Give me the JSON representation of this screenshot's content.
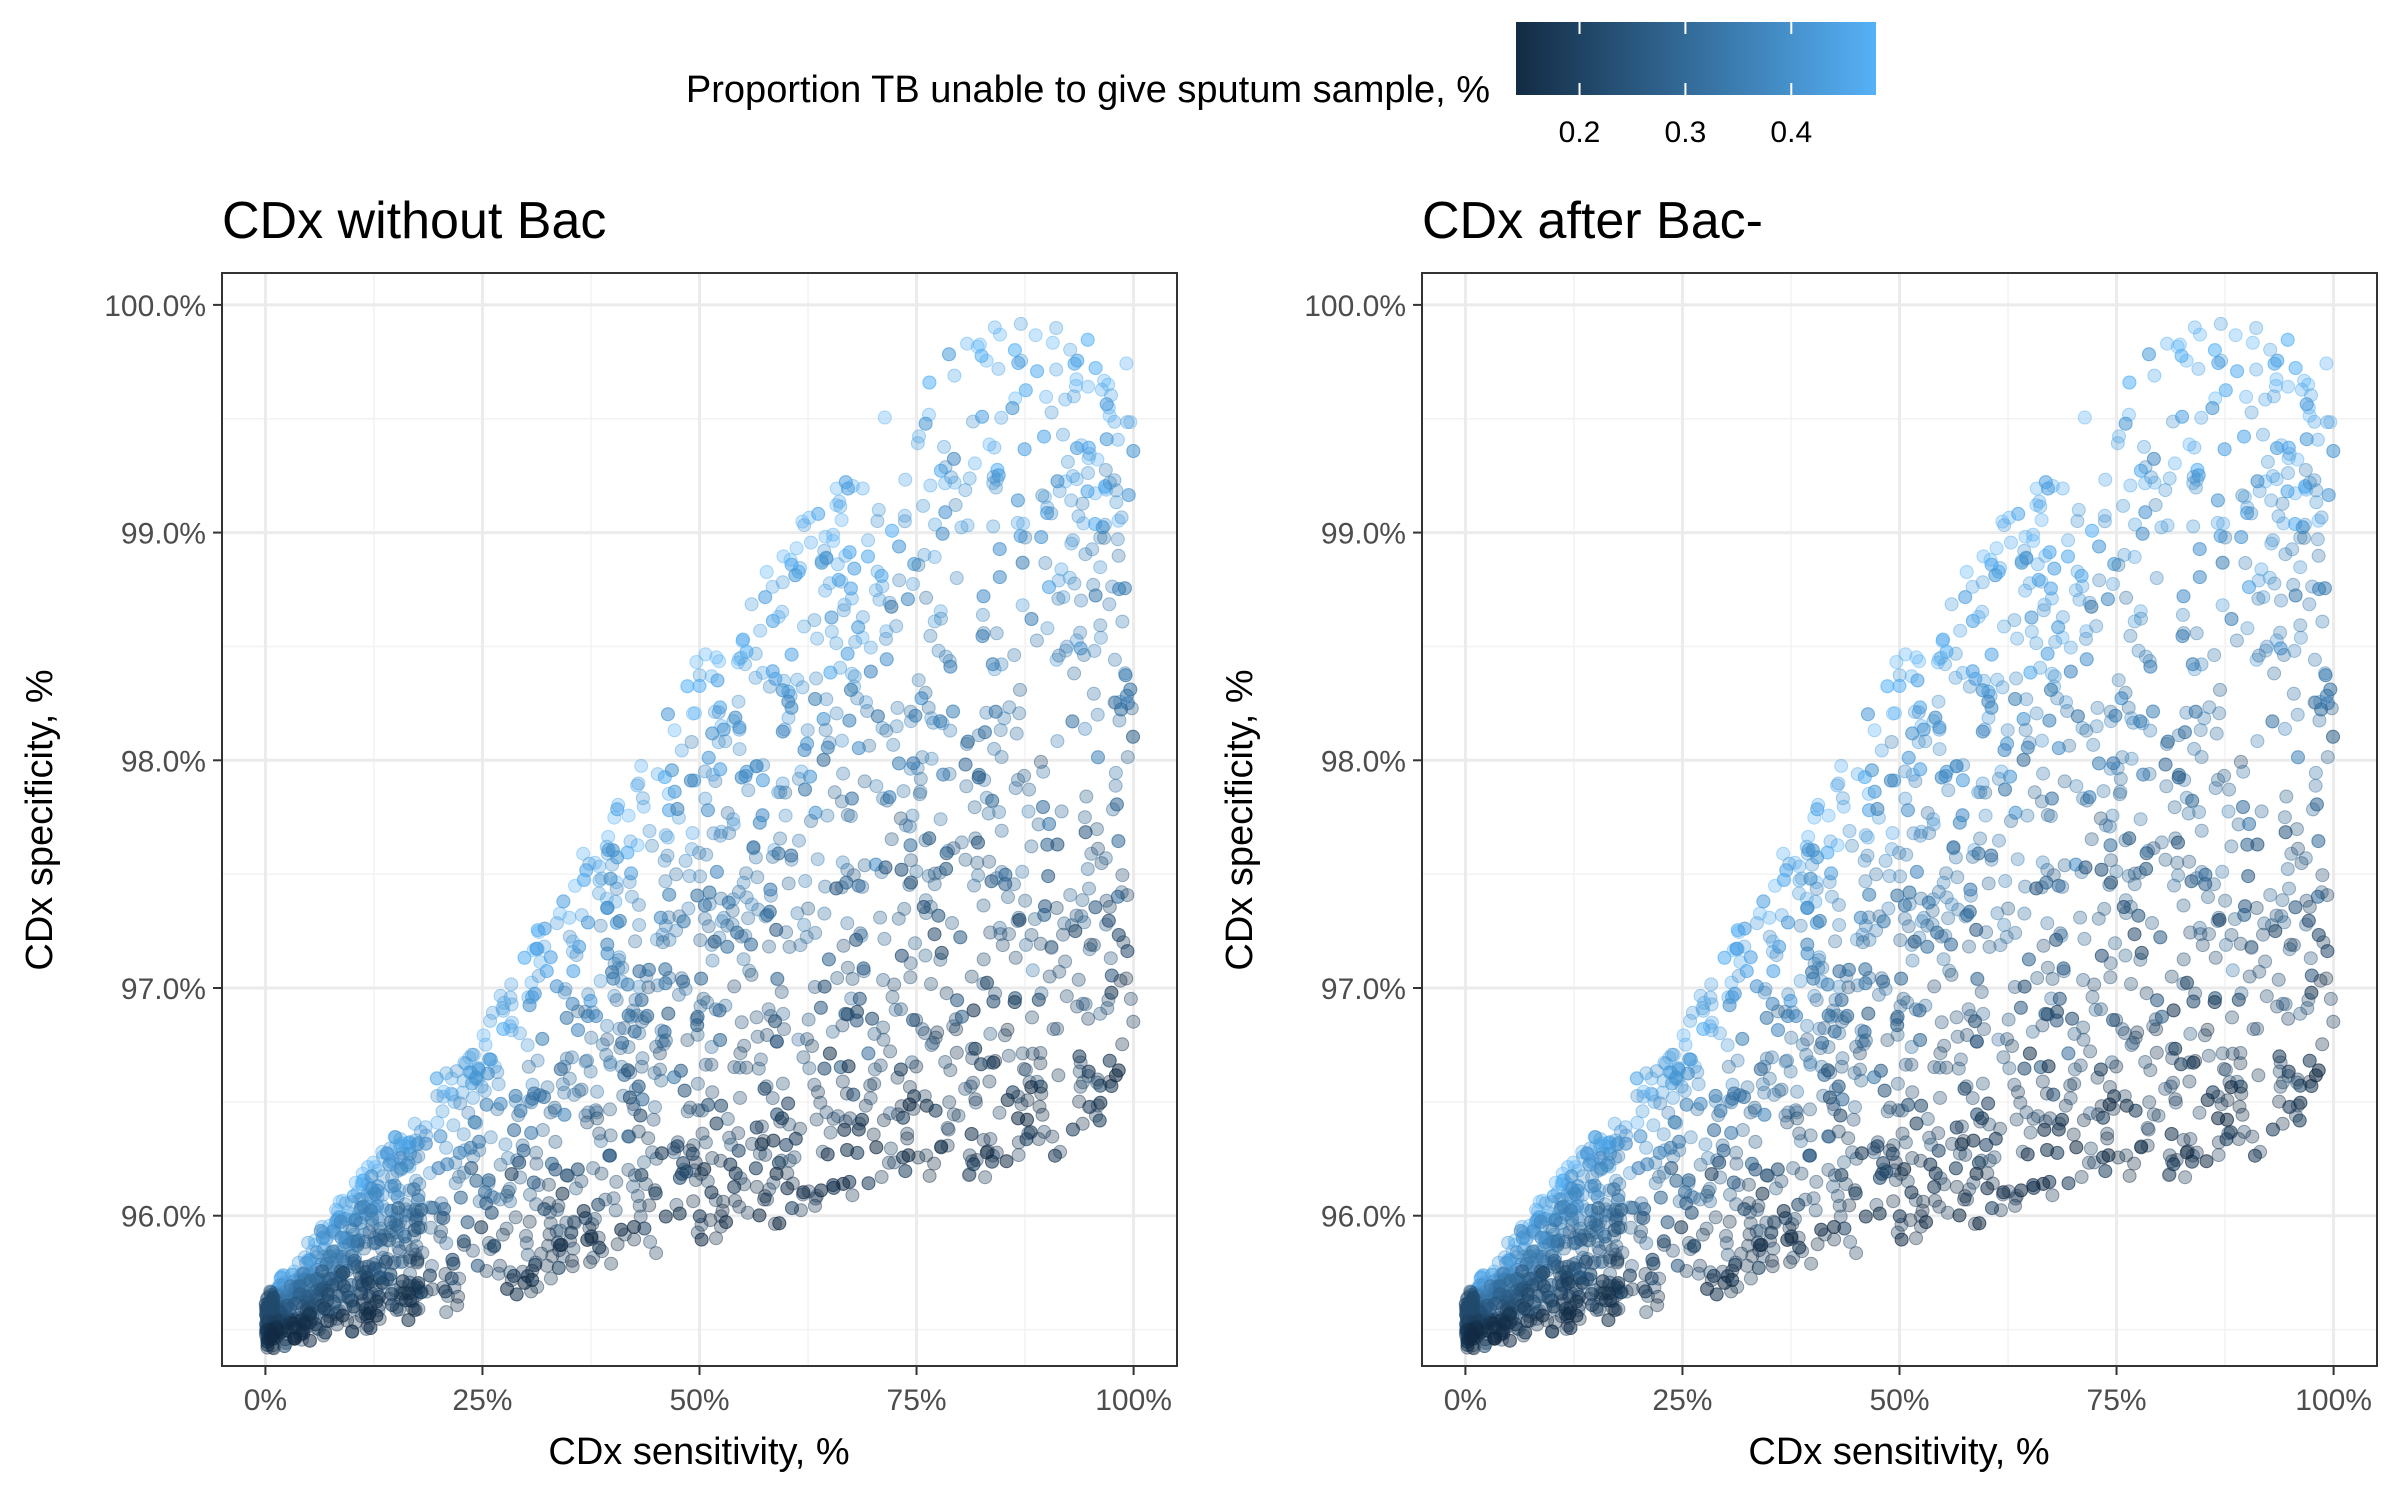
{
  "legend": {
    "title": "Proportion TB unable to give sputum sample, %",
    "ticks": [
      "0.2",
      "0.3",
      "0.4"
    ],
    "tick_values": [
      0.2,
      0.3,
      0.4
    ],
    "range": [
      0.14,
      0.48
    ],
    "color_low": "#132B43",
    "color_high": "#56B1F7"
  },
  "chart_data": [
    {
      "type": "scatter",
      "title": "CDx without Bac",
      "xlabel": "CDx sensitivity, %",
      "ylabel": "CDx specificity, %",
      "xlim": [
        -0.05,
        1.05
      ],
      "ylim": [
        95.34,
        100.14
      ],
      "xticks": [
        0,
        0.25,
        0.5,
        0.75,
        1.0
      ],
      "xtick_labels": [
        "0%",
        "25%",
        "50%",
        "75%",
        "100%"
      ],
      "yticks": [
        96,
        97,
        98,
        99,
        100
      ],
      "ytick_labels": [
        "96.0%",
        "97.0%",
        "98.0%",
        "99.0%",
        "100.0%"
      ],
      "grid": true,
      "color_variable": "Proportion TB unable to give sputum sample, %",
      "approx_point_count": 3000,
      "x_range": [
        0,
        1
      ],
      "y_range": [
        95.45,
        99.92
      ],
      "trend_points": [
        {
          "x": 0.0,
          "y": 95.58,
          "p": 0.2
        },
        {
          "x": 0.1,
          "y": 95.8,
          "p": 0.28
        },
        {
          "x": 0.25,
          "y": 96.3,
          "p": 0.3
        },
        {
          "x": 0.5,
          "y": 97.0,
          "p": 0.3
        },
        {
          "x": 0.75,
          "y": 97.8,
          "p": 0.3
        },
        {
          "x": 1.0,
          "y": 98.6,
          "p": 0.3
        }
      ],
      "upper_edge": [
        {
          "x": 0.0,
          "y": 95.62
        },
        {
          "x": 0.25,
          "y": 96.85
        },
        {
          "x": 0.5,
          "y": 98.45
        },
        {
          "x": 0.75,
          "y": 99.7
        },
        {
          "x": 0.85,
          "y": 99.93
        },
        {
          "x": 1.0,
          "y": 99.85
        }
      ],
      "lower_edge": [
        {
          "x": 0.0,
          "y": 95.45
        },
        {
          "x": 0.25,
          "y": 95.65
        },
        {
          "x": 0.5,
          "y": 95.9
        },
        {
          "x": 0.75,
          "y": 96.15
        },
        {
          "x": 0.95,
          "y": 96.3
        },
        {
          "x": 1.0,
          "y": 96.75
        }
      ]
    },
    {
      "type": "scatter",
      "title": "CDx after Bac-",
      "xlabel": "CDx sensitivity, %",
      "ylabel": "CDx specificity, %",
      "xlim": [
        -0.05,
        1.05
      ],
      "ylim": [
        95.34,
        100.14
      ],
      "xticks": [
        0,
        0.25,
        0.5,
        0.75,
        1.0
      ],
      "xtick_labels": [
        "0%",
        "25%",
        "50%",
        "75%",
        "100%"
      ],
      "yticks": [
        96,
        97,
        98,
        99,
        100
      ],
      "ytick_labels": [
        "96.0%",
        "97.0%",
        "98.0%",
        "99.0%",
        "100.0%"
      ],
      "grid": true,
      "color_variable": "Proportion TB unable to give sputum sample, %",
      "approx_point_count": 3000,
      "x_range": [
        0,
        1
      ],
      "y_range": [
        95.45,
        99.92
      ],
      "trend_points": [
        {
          "x": 0.0,
          "y": 95.58,
          "p": 0.2
        },
        {
          "x": 0.1,
          "y": 95.8,
          "p": 0.28
        },
        {
          "x": 0.25,
          "y": 96.3,
          "p": 0.3
        },
        {
          "x": 0.5,
          "y": 97.0,
          "p": 0.3
        },
        {
          "x": 0.75,
          "y": 97.8,
          "p": 0.3
        },
        {
          "x": 1.0,
          "y": 98.6,
          "p": 0.3
        }
      ],
      "upper_edge": [
        {
          "x": 0.0,
          "y": 95.62
        },
        {
          "x": 0.25,
          "y": 96.85
        },
        {
          "x": 0.5,
          "y": 98.45
        },
        {
          "x": 0.75,
          "y": 99.7
        },
        {
          "x": 0.85,
          "y": 99.93
        },
        {
          "x": 1.0,
          "y": 99.85
        }
      ],
      "lower_edge": [
        {
          "x": 0.0,
          "y": 95.45
        },
        {
          "x": 0.25,
          "y": 95.65
        },
        {
          "x": 0.5,
          "y": 95.9
        },
        {
          "x": 0.75,
          "y": 96.15
        },
        {
          "x": 0.95,
          "y": 96.3
        },
        {
          "x": 1.0,
          "y": 96.75
        }
      ]
    }
  ]
}
